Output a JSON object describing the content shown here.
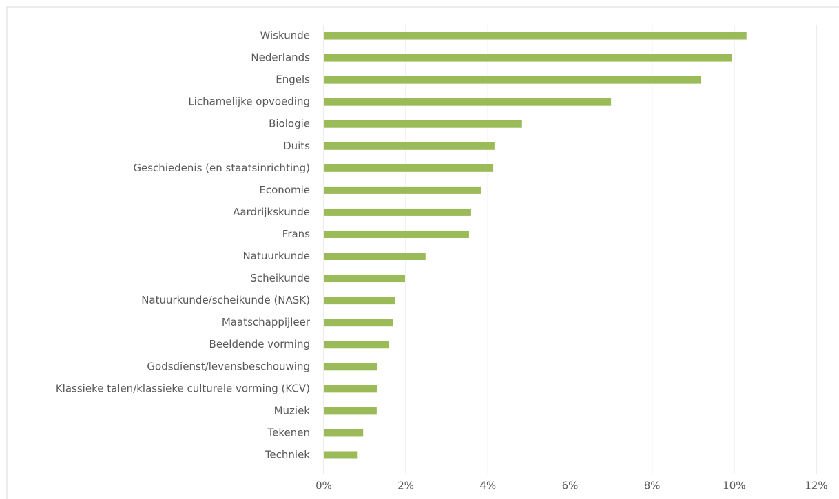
{
  "chart_data": {
    "type": "bar",
    "orientation": "horizontal",
    "categories": [
      "Wiskunde",
      "Nederlands",
      "Engels",
      "Lichamelijke opvoeding",
      "Biologie",
      "Duits",
      "Geschiedenis (en staatsinrichting)",
      "Economie",
      "Aardrijkskunde",
      "Frans",
      "Natuurkunde",
      "Scheikunde",
      "Natuurkunde/scheikunde (NASK)",
      "Maatschappijleer",
      "Beeldende vorming",
      "Godsdienst/levensbeschouwing",
      "Klassieke talen/klassieke culturele vorming (KCV)",
      "Muziek",
      "Tekenen",
      "Techniek"
    ],
    "values": [
      10.3,
      9.95,
      9.19,
      7.0,
      4.83,
      4.16,
      4.13,
      3.83,
      3.59,
      3.54,
      2.48,
      1.98,
      1.74,
      1.68,
      1.59,
      1.31,
      1.31,
      1.29,
      0.96,
      0.81
    ],
    "color": "#9bbb59",
    "xlim": [
      0,
      12
    ],
    "xticks": [
      {
        "value": 0,
        "label": "0%"
      },
      {
        "value": 2,
        "label": "2%"
      },
      {
        "value": 4,
        "label": "4%"
      },
      {
        "value": 6,
        "label": "6%"
      },
      {
        "value": 8,
        "label": "8%"
      },
      {
        "value": 10,
        "label": "10%"
      },
      {
        "value": 12,
        "label": "12%"
      }
    ],
    "grid": true
  }
}
